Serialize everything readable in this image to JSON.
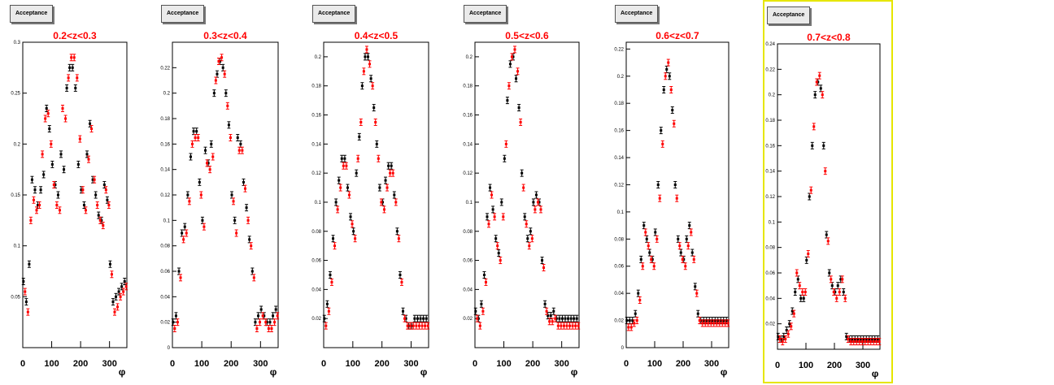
{
  "colors": {
    "series_black": "#000000",
    "series_red": "#ff0000",
    "title_red": "#ff0000",
    "selected_border": "#e6e600"
  },
  "chart_data": [
    {
      "type": "scatter",
      "pad_title": "Acceptance",
      "title": "0.2<z<0.3",
      "xlabel": "φ",
      "ylabel": "",
      "xlim": [
        0,
        360
      ],
      "ylim": [
        0,
        0.3
      ],
      "xticks": [
        0,
        100,
        200,
        300
      ],
      "xticklabels": [
        "0",
        "100",
        "200",
        "300"
      ],
      "yticks": [
        0.05,
        0.1,
        0.15,
        0.2,
        0.25,
        0.3
      ],
      "yticklabels": [
        "0.05",
        "0.1",
        "0.15",
        "0.2",
        "0.25",
        "0.3"
      ],
      "x": [
        5,
        15,
        25,
        35,
        45,
        55,
        65,
        75,
        85,
        95,
        105,
        115,
        125,
        135,
        145,
        155,
        165,
        175,
        185,
        195,
        205,
        215,
        225,
        235,
        245,
        255,
        265,
        275,
        285,
        295,
        305,
        315,
        325,
        335,
        345,
        355
      ],
      "series": [
        {
          "values": [
            0.065,
            0.045,
            0.082,
            0.165,
            0.155,
            0.14,
            0.155,
            0.17,
            0.235,
            0.215,
            0.18,
            0.16,
            0.15,
            0.19,
            0.175,
            0.255,
            0.275,
            0.275,
            0.255,
            0.18,
            0.155,
            0.14,
            0.19,
            0.22,
            0.165,
            0.15,
            0.13,
            0.125,
            0.16,
            0.145,
            0.082,
            0.045,
            0.05,
            0.055,
            0.06,
            0.065
          ]
        },
        {
          "values": [
            0.055,
            0.035,
            0.125,
            0.145,
            0.135,
            0.14,
            0.19,
            0.225,
            0.23,
            0.2,
            0.16,
            0.14,
            0.135,
            0.235,
            0.225,
            0.265,
            0.285,
            0.285,
            0.265,
            0.205,
            0.155,
            0.135,
            0.185,
            0.215,
            0.165,
            0.14,
            0.125,
            0.12,
            0.155,
            0.14,
            0.072,
            0.035,
            0.04,
            0.05,
            0.055,
            0.06
          ]
        }
      ]
    },
    {
      "type": "scatter",
      "pad_title": "Acceptance",
      "title": "0.3<z<0.4",
      "xlabel": "φ",
      "ylabel": "",
      "xlim": [
        0,
        360
      ],
      "ylim": [
        0,
        0.24
      ],
      "xticks": [
        0,
        100,
        200,
        300
      ],
      "xticklabels": [
        "0",
        "100",
        "200",
        "300"
      ],
      "yticks": [
        0,
        0.02,
        0.04,
        0.06,
        0.08,
        0.1,
        0.12,
        0.14,
        0.16,
        0.18,
        0.2,
        0.22
      ],
      "yticklabels": [
        "0",
        "0.02",
        "0.04",
        "0.06",
        "0.08",
        "0.1",
        "0.12",
        "0.14",
        "0.16",
        "0.18",
        "0.2",
        "0.22"
      ],
      "x": [
        5,
        15,
        25,
        35,
        45,
        55,
        65,
        75,
        85,
        95,
        105,
        115,
        125,
        135,
        145,
        155,
        165,
        175,
        185,
        195,
        205,
        215,
        225,
        235,
        245,
        255,
        265,
        275,
        285,
        295,
        305,
        315,
        325,
        335,
        345,
        355
      ],
      "series": [
        {
          "values": [
            0.02,
            0.025,
            0.06,
            0.09,
            0.095,
            0.12,
            0.15,
            0.17,
            0.17,
            0.13,
            0.1,
            0.155,
            0.145,
            0.16,
            0.2,
            0.215,
            0.225,
            0.22,
            0.2,
            0.175,
            0.12,
            0.1,
            0.165,
            0.16,
            0.13,
            0.11,
            0.085,
            0.06,
            0.02,
            0.025,
            0.03,
            0.025,
            0.02,
            0.02,
            0.025,
            0.03
          ]
        },
        {
          "values": [
            0.015,
            0.02,
            0.055,
            0.085,
            0.09,
            0.115,
            0.16,
            0.165,
            0.165,
            0.12,
            0.095,
            0.145,
            0.14,
            0.15,
            0.21,
            0.225,
            0.228,
            0.215,
            0.19,
            0.165,
            0.115,
            0.09,
            0.155,
            0.155,
            0.125,
            0.1,
            0.08,
            0.055,
            0.015,
            0.02,
            0.025,
            0.02,
            0.015,
            0.015,
            0.02,
            0.025
          ]
        }
      ]
    },
    {
      "type": "scatter",
      "pad_title": "Acceptance",
      "title": "0.4<z<0.5",
      "xlabel": "φ",
      "ylabel": "",
      "xlim": [
        0,
        360
      ],
      "ylim": [
        0,
        0.21
      ],
      "xticks": [
        0,
        100,
        200,
        300
      ],
      "xticklabels": [
        "0",
        "100",
        "200",
        "300"
      ],
      "yticks": [
        0.02,
        0.04,
        0.06,
        0.08,
        0.1,
        0.12,
        0.14,
        0.16,
        0.18,
        0.2
      ],
      "yticklabels": [
        "0.02",
        "0.04",
        "0.06",
        "0.08",
        "0.1",
        "0.12",
        "0.14",
        "0.16",
        "0.18",
        "0.2"
      ],
      "x": [
        5,
        15,
        25,
        35,
        45,
        55,
        65,
        75,
        85,
        95,
        105,
        115,
        125,
        135,
        145,
        155,
        165,
        175,
        185,
        195,
        205,
        215,
        225,
        235,
        245,
        255,
        265,
        275,
        285,
        295,
        305,
        315,
        325,
        335,
        345,
        355
      ],
      "series": [
        {
          "values": [
            0.02,
            0.03,
            0.05,
            0.075,
            0.1,
            0.115,
            0.13,
            0.13,
            0.11,
            0.09,
            0.08,
            0.12,
            0.145,
            0.18,
            0.2,
            0.2,
            0.185,
            0.165,
            0.14,
            0.11,
            0.1,
            0.115,
            0.125,
            0.125,
            0.105,
            0.08,
            0.05,
            0.025,
            0.02,
            0.015,
            0.015,
            0.02,
            0.02,
            0.02,
            0.02,
            0.02
          ]
        },
        {
          "values": [
            0.015,
            0.025,
            0.045,
            0.07,
            0.095,
            0.11,
            0.125,
            0.125,
            0.105,
            0.085,
            0.075,
            0.13,
            0.155,
            0.19,
            0.205,
            0.195,
            0.18,
            0.155,
            0.13,
            0.1,
            0.095,
            0.11,
            0.12,
            0.12,
            0.1,
            0.075,
            0.045,
            0.02,
            0.015,
            0.015,
            0.015,
            0.015,
            0.015,
            0.015,
            0.015,
            0.015
          ]
        }
      ]
    },
    {
      "type": "scatter",
      "pad_title": "Acceptance",
      "title": "0.5<z<0.6",
      "xlabel": "φ",
      "ylabel": "",
      "xlim": [
        0,
        360
      ],
      "ylim": [
        0,
        0.21
      ],
      "xticks": [
        0,
        100,
        200,
        300
      ],
      "xticklabels": [
        "0",
        "100",
        "200",
        "300"
      ],
      "yticks": [
        0.02,
        0.04,
        0.06,
        0.08,
        0.1,
        0.12,
        0.14,
        0.16,
        0.18,
        0.2
      ],
      "yticklabels": [
        "0.02",
        "0.04",
        "0.06",
        "0.08",
        "0.1",
        "0.12",
        "0.14",
        "0.16",
        "0.18",
        "0.2"
      ],
      "x": [
        5,
        15,
        25,
        35,
        45,
        55,
        65,
        75,
        85,
        95,
        105,
        115,
        125,
        135,
        145,
        155,
        165,
        175,
        185,
        195,
        205,
        215,
        225,
        235,
        245,
        255,
        265,
        275,
        285,
        295,
        305,
        315,
        325,
        335,
        345,
        355
      ],
      "series": [
        {
          "values": [
            0.025,
            0.02,
            0.03,
            0.05,
            0.09,
            0.11,
            0.095,
            0.075,
            0.065,
            0.1,
            0.13,
            0.17,
            0.195,
            0.2,
            0.185,
            0.165,
            0.12,
            0.09,
            0.075,
            0.08,
            0.1,
            0.105,
            0.1,
            0.06,
            0.03,
            0.022,
            0.022,
            0.025,
            0.02,
            0.02,
            0.02,
            0.02,
            0.02,
            0.02,
            0.02,
            0.02
          ]
        },
        {
          "values": [
            0.02,
            0.015,
            0.025,
            0.045,
            0.085,
            0.105,
            0.09,
            0.07,
            0.06,
            0.09,
            0.14,
            0.18,
            0.2,
            0.205,
            0.19,
            0.155,
            0.11,
            0.085,
            0.07,
            0.075,
            0.095,
            0.1,
            0.095,
            0.055,
            0.025,
            0.018,
            0.018,
            0.02,
            0.015,
            0.015,
            0.015,
            0.015,
            0.015,
            0.015,
            0.015,
            0.015
          ]
        }
      ]
    },
    {
      "type": "scatter",
      "pad_title": "Acceptance",
      "title": "0.6<z<0.7",
      "xlabel": "φ",
      "ylabel": "",
      "xlim": [
        0,
        360
      ],
      "ylim": [
        0,
        0.225
      ],
      "xticks": [
        0,
        100,
        200,
        300
      ],
      "xticklabels": [
        "0",
        "100",
        "200",
        "300"
      ],
      "yticks": [
        0,
        0.02,
        0.04,
        0.06,
        0.08,
        0.1,
        0.12,
        0.14,
        0.16,
        0.18,
        0.2,
        0.22
      ],
      "yticklabels": [
        "0",
        "0.02",
        "0.04",
        "0.06",
        "0.08",
        "0.1",
        "0.12",
        "0.14",
        "0.16",
        "0.18",
        "0.2",
        "0.22"
      ],
      "x": [
        5,
        15,
        25,
        35,
        45,
        55,
        65,
        75,
        85,
        95,
        105,
        115,
        125,
        135,
        145,
        155,
        165,
        175,
        185,
        195,
        205,
        215,
        225,
        235,
        245,
        255,
        265,
        275,
        285,
        295,
        305,
        315,
        325,
        335,
        345,
        355
      ],
      "series": [
        {
          "values": [
            0.02,
            0.02,
            0.02,
            0.025,
            0.04,
            0.065,
            0.09,
            0.08,
            0.07,
            0.065,
            0.085,
            0.12,
            0.16,
            0.19,
            0.205,
            0.2,
            0.175,
            0.12,
            0.08,
            0.07,
            0.065,
            0.08,
            0.09,
            0.07,
            0.045,
            0.025,
            0.02,
            0.02,
            0.02,
            0.02,
            0.02,
            0.02,
            0.02,
            0.02,
            0.02,
            0.02
          ]
        },
        {
          "values": [
            0.015,
            0.015,
            0.018,
            0.02,
            0.035,
            0.06,
            0.085,
            0.075,
            0.065,
            0.06,
            0.08,
            0.11,
            0.15,
            0.2,
            0.21,
            0.19,
            0.165,
            0.11,
            0.075,
            0.065,
            0.06,
            0.075,
            0.085,
            0.065,
            0.04,
            0.02,
            0.018,
            0.018,
            0.018,
            0.018,
            0.018,
            0.018,
            0.018,
            0.018,
            0.018,
            0.018
          ]
        }
      ]
    },
    {
      "type": "scatter",
      "pad_title": "Acceptance",
      "title": "0.7<z<0.8",
      "xlabel": "φ",
      "ylabel": "",
      "xlim": [
        0,
        360
      ],
      "ylim": [
        0,
        0.24
      ],
      "xticks": [
        0,
        100,
        200,
        300
      ],
      "xticklabels": [
        "0",
        "100",
        "200",
        "300"
      ],
      "yticks": [
        0.02,
        0.04,
        0.06,
        0.08,
        0.1,
        0.12,
        0.14,
        0.16,
        0.18,
        0.2,
        0.22,
        0.24
      ],
      "yticklabels": [
        "0.02",
        "0.04",
        "0.06",
        "0.08",
        "0.1",
        "0.12",
        "0.14",
        "0.16",
        "0.18",
        "0.2",
        "0.22",
        "0.24"
      ],
      "x": [
        5,
        15,
        25,
        35,
        45,
        55,
        65,
        75,
        85,
        95,
        105,
        115,
        125,
        135,
        145,
        155,
        165,
        175,
        185,
        195,
        205,
        215,
        225,
        235,
        245,
        255,
        265,
        275,
        285,
        295,
        305,
        315,
        325,
        335,
        345,
        355
      ],
      "series": [
        {
          "values": [
            0.01,
            0.008,
            0.01,
            0.015,
            0.02,
            0.03,
            0.045,
            0.055,
            0.04,
            0.04,
            0.07,
            0.12,
            0.16,
            0.2,
            0.21,
            0.205,
            0.16,
            0.09,
            0.06,
            0.05,
            0.045,
            0.05,
            0.055,
            0.045,
            0.01,
            0.008,
            0.008,
            0.008,
            0.008,
            0.008,
            0.008,
            0.008,
            0.008,
            0.008,
            0.008,
            0.008
          ]
        },
        {
          "values": [
            0.008,
            0.006,
            0.008,
            0.012,
            0.018,
            0.028,
            0.06,
            0.05,
            0.045,
            0.045,
            0.075,
            0.125,
            0.175,
            0.21,
            0.215,
            0.2,
            0.14,
            0.085,
            0.055,
            0.045,
            0.04,
            0.045,
            0.055,
            0.04,
            0.008,
            0.006,
            0.006,
            0.006,
            0.006,
            0.006,
            0.006,
            0.006,
            0.006,
            0.006,
            0.006,
            0.006
          ]
        }
      ]
    }
  ]
}
